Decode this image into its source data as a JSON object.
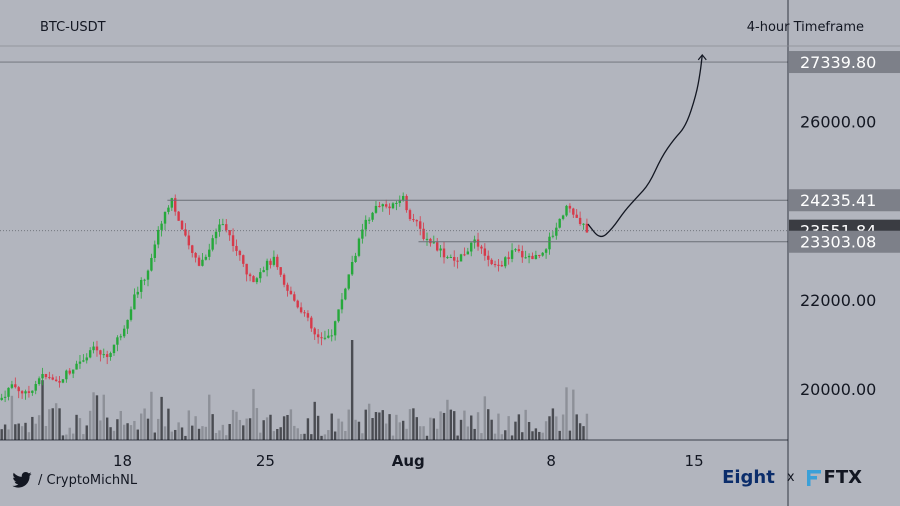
{
  "header": {
    "symbol": "BTC-USDT",
    "timeframe": "4-hour Timeframe"
  },
  "footer": {
    "handle": "/ CryptoMichNL",
    "brand_eight": "Eight",
    "brand_x": "x",
    "brand_ftx": "FTX"
  },
  "colors": {
    "background": "#b2b5be",
    "up": "#26a83b",
    "down": "#d63a4a",
    "volume_dark": "#4a4c52",
    "volume_light": "#8d9098",
    "tag_dark": "#7d8089",
    "tag_current": "#3a3c42"
  },
  "chart_data": {
    "type": "candlestick",
    "y_axis": {
      "ticks": [
        20000,
        22000,
        24000,
        26000
      ],
      "tick_labels": [
        "20000.00",
        "22000.00",
        "",
        "26000.00"
      ],
      "range": [
        18850,
        27700
      ]
    },
    "x_axis": {
      "tick_labels": [
        "18",
        "25",
        "Aug",
        "8",
        "15"
      ],
      "tick_days": [
        18,
        25,
        32,
        39,
        46
      ],
      "range_days": [
        12.0,
        50.6
      ]
    },
    "levels": [
      {
        "value": 27339.8,
        "label": "27339.80",
        "style": "resistance"
      },
      {
        "value": 24235.41,
        "label": "24235.41",
        "style": "resistance"
      },
      {
        "value": 23551.84,
        "label": "23551.84",
        "style": "current"
      },
      {
        "value": 23303.08,
        "label": "23303.08",
        "style": "support"
      }
    ],
    "price_path": [
      [
        12.0,
        19750
      ],
      [
        12.6,
        20100
      ],
      [
        13.3,
        19850
      ],
      [
        14.0,
        20300
      ],
      [
        14.8,
        20150
      ],
      [
        15.6,
        20500
      ],
      [
        16.5,
        20900
      ],
      [
        17.2,
        20700
      ],
      [
        18.0,
        21300
      ],
      [
        18.6,
        22100
      ],
      [
        19.2,
        22600
      ],
      [
        19.6,
        23300
      ],
      [
        20.0,
        23900
      ],
      [
        20.4,
        24300
      ],
      [
        20.8,
        23700
      ],
      [
        21.3,
        23100
      ],
      [
        21.8,
        22800
      ],
      [
        22.3,
        23200
      ],
      [
        22.8,
        23800
      ],
      [
        23.3,
        23400
      ],
      [
        23.8,
        22900
      ],
      [
        24.3,
        22400
      ],
      [
        24.8,
        22700
      ],
      [
        25.4,
        22900
      ],
      [
        25.9,
        22300
      ],
      [
        26.4,
        22000
      ],
      [
        26.9,
        21700
      ],
      [
        27.4,
        21200
      ],
      [
        27.9,
        21050
      ],
      [
        28.3,
        21300
      ],
      [
        28.8,
        22100
      ],
      [
        29.3,
        22900
      ],
      [
        29.8,
        23600
      ],
      [
        30.2,
        24000
      ],
      [
        30.7,
        24150
      ],
      [
        31.2,
        24050
      ],
      [
        31.7,
        24350
      ],
      [
        32.0,
        23950
      ],
      [
        32.4,
        23700
      ],
      [
        32.8,
        23400
      ],
      [
        33.3,
        23250
      ],
      [
        33.8,
        23000
      ],
      [
        34.3,
        22850
      ],
      [
        34.8,
        23100
      ],
      [
        35.3,
        23300
      ],
      [
        35.8,
        22900
      ],
      [
        36.2,
        22700
      ],
      [
        36.7,
        22850
      ],
      [
        37.2,
        23100
      ],
      [
        37.7,
        23000
      ],
      [
        38.2,
        22950
      ],
      [
        38.6,
        23100
      ],
      [
        39.0,
        23400
      ],
      [
        39.4,
        23800
      ],
      [
        39.8,
        24150
      ],
      [
        40.1,
        23900
      ],
      [
        40.4,
        23700
      ],
      [
        40.8,
        23550
      ]
    ],
    "projection": [
      [
        40.8,
        23700
      ],
      [
        41.4,
        23350
      ],
      [
        42.0,
        23600
      ],
      [
        42.6,
        24000
      ],
      [
        43.2,
        24300
      ],
      [
        43.8,
        24600
      ],
      [
        44.4,
        25200
      ],
      [
        45.0,
        25600
      ],
      [
        45.6,
        25900
      ],
      [
        46.1,
        26600
      ],
      [
        46.3,
        27100
      ],
      [
        46.4,
        27500
      ]
    ],
    "volume": {
      "max_spike_day": 29.2
    }
  }
}
